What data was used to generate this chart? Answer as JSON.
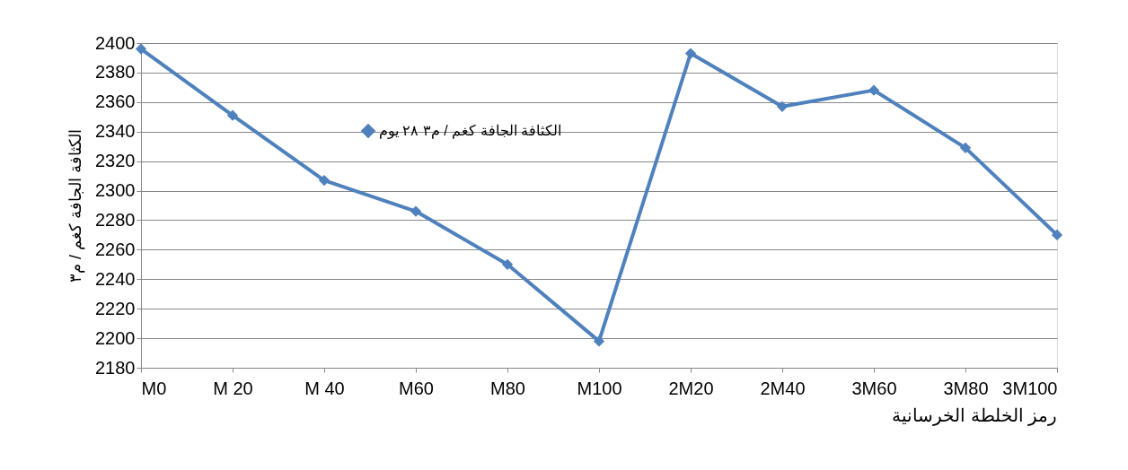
{
  "chart_data": {
    "type": "line",
    "xlabel": "رمز الخلطة الخرسانية",
    "ylabel": "الكثافة الجافة كغم / م٣",
    "categories": [
      "M0",
      "M 20",
      "M 40",
      "M60",
      "M80",
      "M100",
      "2M20",
      "2M40",
      "3M60",
      "3M80",
      "3M100"
    ],
    "series": [
      {
        "name": "الكثافة الجافة كغم / م٣ ٢٨ يوم",
        "color": "#4f81bd",
        "values": [
          2396,
          2351,
          2307,
          2286,
          2250,
          2198,
          2393,
          2357,
          2368,
          2329,
          2270
        ]
      }
    ],
    "ylim": [
      2180,
      2400
    ],
    "yticks": [
      2180,
      2200,
      2220,
      2240,
      2260,
      2280,
      2300,
      2320,
      2340,
      2360,
      2380,
      2400
    ],
    "grid": "y",
    "legend": "top left",
    "marker": "diamond",
    "line_style": "solid"
  }
}
